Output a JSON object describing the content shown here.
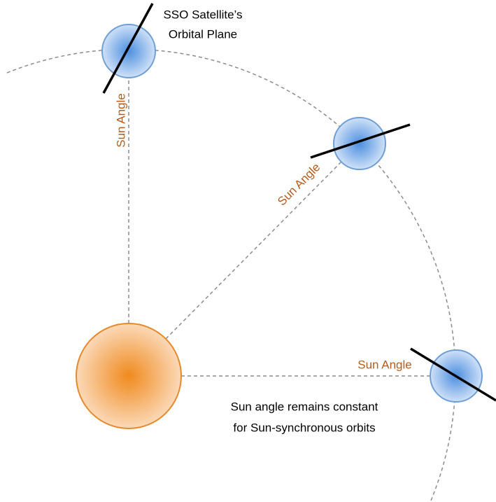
{
  "annotations": {
    "orbital_plane": [
      "SSO Satellite’s",
      "Orbital Plane"
    ],
    "sun_angle_labels": [
      "Sun Angle",
      "Sun Angle",
      "Sun Angle"
    ],
    "caption": [
      "Sun angle remains constant",
      "for Sun-synchronous orbits"
    ]
  }
}
